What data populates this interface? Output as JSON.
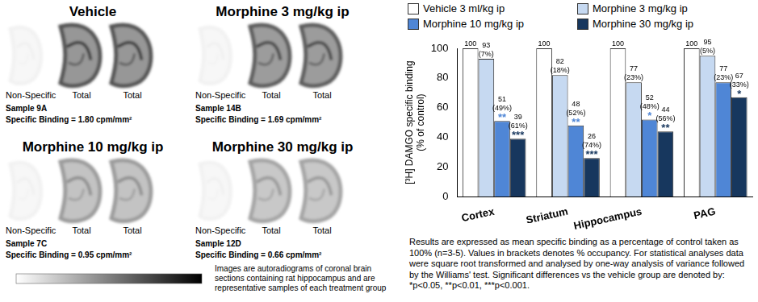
{
  "panels": [
    {
      "title": "Vehicle",
      "non_specific": "Non-Specific",
      "total": "Total",
      "sample": "Sample 9A",
      "specific_binding": "Specific Binding = 1.80 cpm/mm²"
    },
    {
      "title": "Morphine 3 mg/kg ip",
      "non_specific": "Non-Specific",
      "total": "Total",
      "sample": "Sample 14B",
      "specific_binding": "Specific Binding = 1.69 cpm/mm²"
    },
    {
      "title": "Morphine  10 mg/kg ip",
      "non_specific": "Non-Specific",
      "total": "Total",
      "sample": "Sample 7C",
      "specific_binding": "Specific Binding = 0.95 cpm/mm²"
    },
    {
      "title": "Morphine 30 mg/kg ip",
      "non_specific": "Non-Specific",
      "total": "Total",
      "sample": "Sample 12D",
      "specific_binding": "Specific Binding = 0.66 cpm/mm²"
    }
  ],
  "images_caption": "Images are autoradiograms of coronal brain sections containing rat hippocampus and are representative samples of each treatment group",
  "chart_data": {
    "type": "bar",
    "y_label": "[³H] DAMGO specific binding\n(% of control)",
    "categories": [
      "Cortex",
      "Striatum",
      "Hippocampus",
      "PAG"
    ],
    "ylim": [
      0,
      100
    ],
    "yticks": [
      0,
      20,
      40,
      60,
      80,
      100
    ],
    "grid": false,
    "legend": "top",
    "data_labels": true,
    "series": [
      {
        "name": "Vehicle 3 ml/kg ip",
        "color": "#ffffff",
        "values": [
          100,
          100,
          100,
          100
        ]
      },
      {
        "name": "Morphine 3 mg/kg ip",
        "color": "#c6d9f1",
        "values": [
          93,
          82,
          77,
          95
        ],
        "occupancy": [
          "(7%)",
          "(18%)",
          "(23%)",
          "(5%)"
        ],
        "significance": [
          null,
          null,
          null,
          null
        ]
      },
      {
        "name": "Morphine 10 mg/kg ip",
        "color": "#4f86d6",
        "values": [
          51,
          48,
          52,
          77
        ],
        "occupancy": [
          "(49%)",
          "(52%)",
          "(48%)",
          "(23%)"
        ],
        "significance": [
          "**",
          "**",
          "*",
          null
        ]
      },
      {
        "name": "Morphine 30 mg/kg ip",
        "color": "#17375e",
        "values": [
          39,
          26,
          44,
          67
        ],
        "occupancy": [
          "(61%)",
          "(74%)",
          "(56%)",
          "(33%)"
        ],
        "significance": [
          "***",
          "***",
          "**",
          "*"
        ]
      }
    ]
  },
  "footnote": "Results are expressed as mean specific binding as a percentage of control taken as 100% (n=3-5). Values in brackets denotes % occupancy. For statistical analyses data were square root transformed and analysed by one-way analysis of variance followed by the Williams' test. Significant differences vs the vehicle group are denoted by: *p<0.05, **p<0.01, ***p<0.001."
}
